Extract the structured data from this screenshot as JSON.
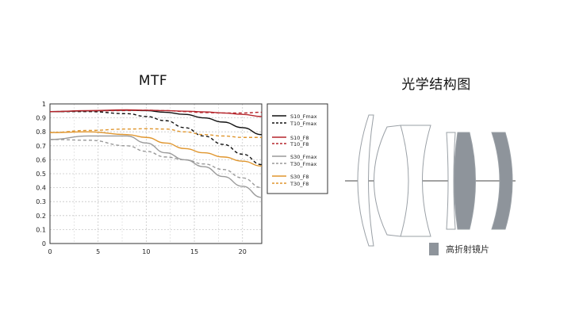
{
  "titles": {
    "mtf": "MTF",
    "lens": "光学结构图"
  },
  "chart_data": {
    "type": "line",
    "title": "MTF",
    "xlim": [
      0,
      22
    ],
    "ylim": [
      0,
      1
    ],
    "x_ticks": [
      0,
      5,
      10,
      15,
      20
    ],
    "y_ticks": [
      0,
      0.1,
      0.2,
      0.3,
      0.4,
      0.5,
      0.6,
      0.7,
      0.8,
      0.9,
      1
    ],
    "y_tick_labels": [
      "0",
      "0.1",
      "0.2",
      "0.3",
      "0.4",
      "0.5",
      "0.6",
      "0.7",
      "0.8",
      "0.9",
      "1"
    ],
    "grid": true,
    "legend_position": "right",
    "series": [
      {
        "name": "S10_Fmax",
        "color": "#111111",
        "dash": "solid",
        "x": [
          0,
          4,
          8,
          10,
          12,
          14,
          16,
          18,
          20,
          22
        ],
        "y": [
          0.945,
          0.95,
          0.955,
          0.952,
          0.94,
          0.925,
          0.9,
          0.87,
          0.83,
          0.78
        ]
      },
      {
        "name": "T10_Fmax",
        "color": "#111111",
        "dash": "dash",
        "x": [
          0,
          4,
          8,
          10,
          12,
          14,
          16,
          18,
          20,
          22
        ],
        "y": [
          0.945,
          0.945,
          0.93,
          0.91,
          0.88,
          0.83,
          0.77,
          0.71,
          0.64,
          0.565
        ]
      },
      {
        "name": "S10_F8",
        "color": "#b5272d",
        "dash": "solid",
        "x": [
          0,
          4,
          8,
          10,
          12,
          14,
          16,
          18,
          20,
          22
        ],
        "y": [
          0.945,
          0.952,
          0.958,
          0.955,
          0.952,
          0.948,
          0.943,
          0.935,
          0.925,
          0.91
        ]
      },
      {
        "name": "T10_F8",
        "color": "#b5272d",
        "dash": "dash",
        "x": [
          0,
          4,
          8,
          10,
          12,
          14,
          16,
          18,
          20,
          22
        ],
        "y": [
          0.945,
          0.95,
          0.952,
          0.955,
          0.952,
          0.945,
          0.938,
          0.935,
          0.935,
          0.94
        ]
      },
      {
        "name": "S30_Fmax",
        "color": "#9a9a9a",
        "dash": "solid",
        "x": [
          0,
          4,
          8,
          10,
          12,
          14,
          16,
          18,
          20,
          22
        ],
        "y": [
          0.745,
          0.77,
          0.77,
          0.72,
          0.65,
          0.6,
          0.55,
          0.48,
          0.41,
          0.33
        ]
      },
      {
        "name": "T30_Fmax",
        "color": "#9a9a9a",
        "dash": "dash",
        "x": [
          0,
          4,
          8,
          10,
          12,
          14,
          16,
          18,
          20,
          22
        ],
        "y": [
          0.745,
          0.74,
          0.7,
          0.66,
          0.62,
          0.6,
          0.57,
          0.53,
          0.47,
          0.4
        ]
      },
      {
        "name": "S30_F8",
        "color": "#e0962e",
        "dash": "solid",
        "x": [
          0,
          4,
          8,
          10,
          12,
          14,
          16,
          18,
          20,
          22
        ],
        "y": [
          0.795,
          0.8,
          0.78,
          0.76,
          0.72,
          0.68,
          0.65,
          0.62,
          0.59,
          0.555
        ]
      },
      {
        "name": "T30_F8",
        "color": "#e0962e",
        "dash": "dash",
        "x": [
          0,
          4,
          8,
          10,
          12,
          14,
          16,
          18,
          20,
          22
        ],
        "y": [
          0.795,
          0.81,
          0.82,
          0.822,
          0.82,
          0.8,
          0.78,
          0.77,
          0.76,
          0.76
        ]
      }
    ]
  },
  "lens_diagram": {
    "legend_label": "高折射镜片",
    "colors": {
      "high_index_fill": "#8e949b",
      "outline": "#9aa0a6",
      "axis": "#444444"
    }
  }
}
